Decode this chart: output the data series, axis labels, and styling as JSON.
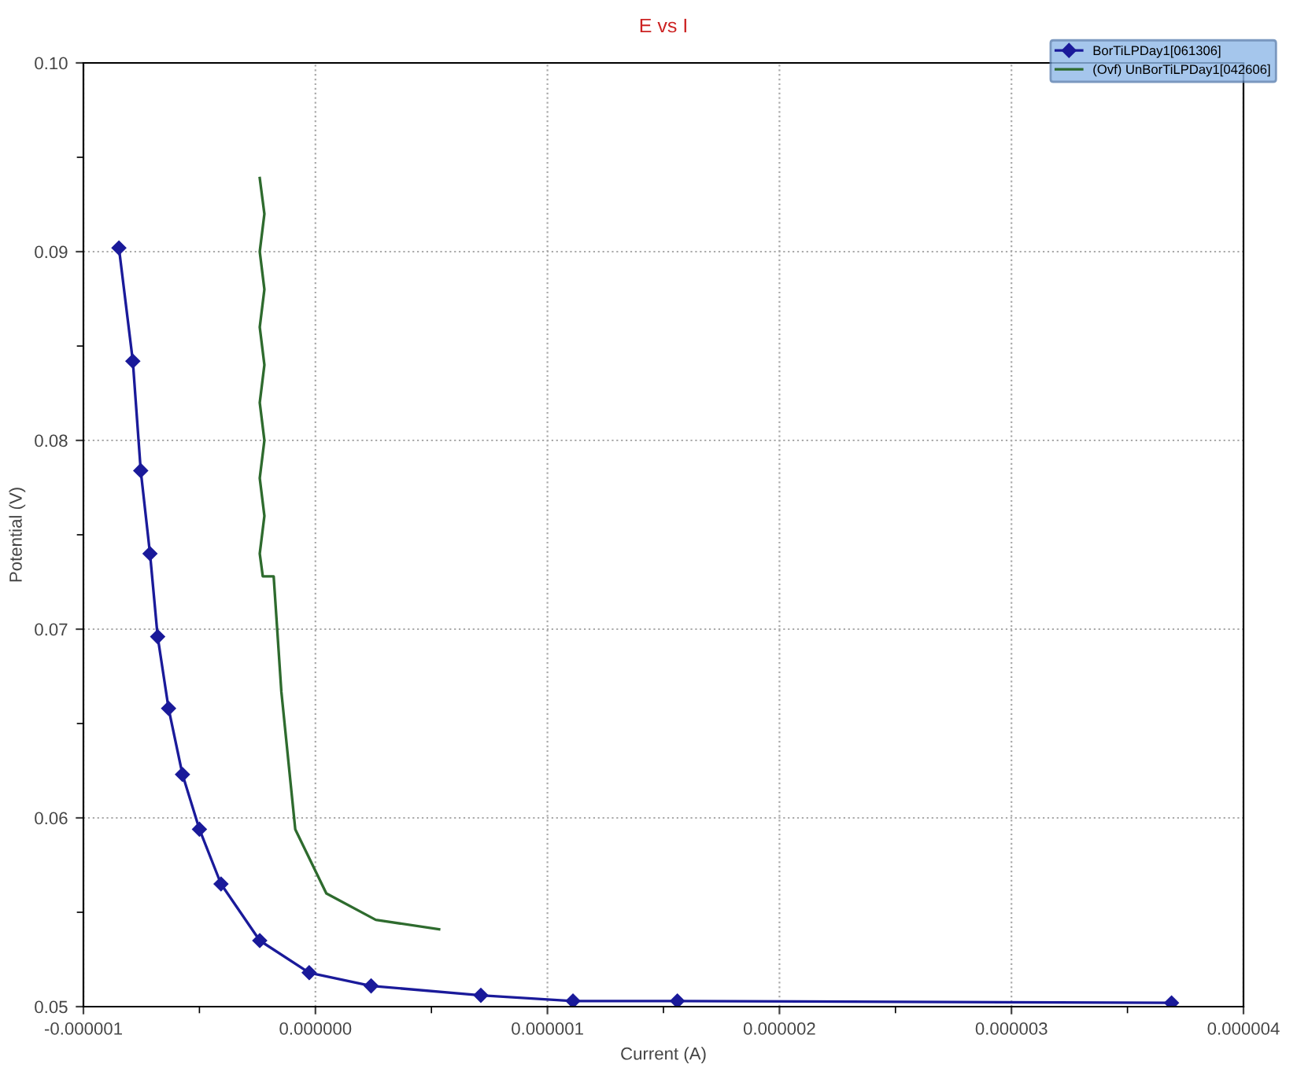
{
  "chart_data": {
    "type": "line",
    "title": "E vs I",
    "xlabel": "Current (A)",
    "ylabel": "Potential (V)",
    "xlim": [
      -1e-06,
      4e-06
    ],
    "ylim": [
      0.05,
      0.1
    ],
    "xticks": [
      {
        "value": -1e-06,
        "label": "-0.000001"
      },
      {
        "value": 0,
        "label": "0.000000"
      },
      {
        "value": 1e-06,
        "label": "0.000001"
      },
      {
        "value": 2e-06,
        "label": "0.000002"
      },
      {
        "value": 3e-06,
        "label": "0.000003"
      },
      {
        "value": 4e-06,
        "label": "0.000004"
      }
    ],
    "yticks": [
      {
        "value": 0.05,
        "label": "0.05"
      },
      {
        "value": 0.06,
        "label": "0.06"
      },
      {
        "value": 0.07,
        "label": "0.07"
      },
      {
        "value": 0.08,
        "label": "0.08"
      },
      {
        "value": 0.09,
        "label": "0.09"
      },
      {
        "value": 0.1,
        "label": "0.10"
      }
    ],
    "grid": true,
    "legend": "top right",
    "series": [
      {
        "name": "BorTiLPDay1[061306]",
        "color": "#1a1a9a",
        "marker": "diamond",
        "x": [
          -8.47e-07,
          -7.87e-07,
          -7.53e-07,
          -7.13e-07,
          -6.8e-07,
          -6.33e-07,
          -5.73e-07,
          -5e-07,
          -4.07e-07,
          -2.4e-07,
          -2.7e-08,
          2.4e-07,
          7.13e-07,
          1.11e-06,
          1.56e-06,
          3.69e-06
        ],
        "values": [
          0.0902,
          0.0842,
          0.0784,
          0.074,
          0.0696,
          0.0658,
          0.0623,
          0.0594,
          0.0565,
          0.0535,
          0.0518,
          0.0511,
          0.0506,
          0.0503,
          0.0503,
          0.0502
        ]
      },
      {
        "name": "(Ovf) UnBorTiLPDay1[042606]",
        "color": "#2e6b2e",
        "marker": "none",
        "x": [
          -2.4e-07,
          -2.2e-07,
          -2.4e-07,
          -2.2e-07,
          -2.4e-07,
          -2.2e-07,
          -2.4e-07,
          -2.2e-07,
          -2.4e-07,
          -2.2e-07,
          -2.4e-07,
          -2.27e-07,
          -1.8e-07,
          -1.47e-07,
          -8.7e-08,
          4.7e-08,
          2.6e-07,
          5.33e-07
        ],
        "values": [
          0.0939,
          0.092,
          0.09,
          0.088,
          0.086,
          0.084,
          0.082,
          0.08,
          0.078,
          0.076,
          0.074,
          0.0728,
          0.0728,
          0.0667,
          0.0594,
          0.056,
          0.0546,
          0.0541
        ]
      }
    ]
  }
}
